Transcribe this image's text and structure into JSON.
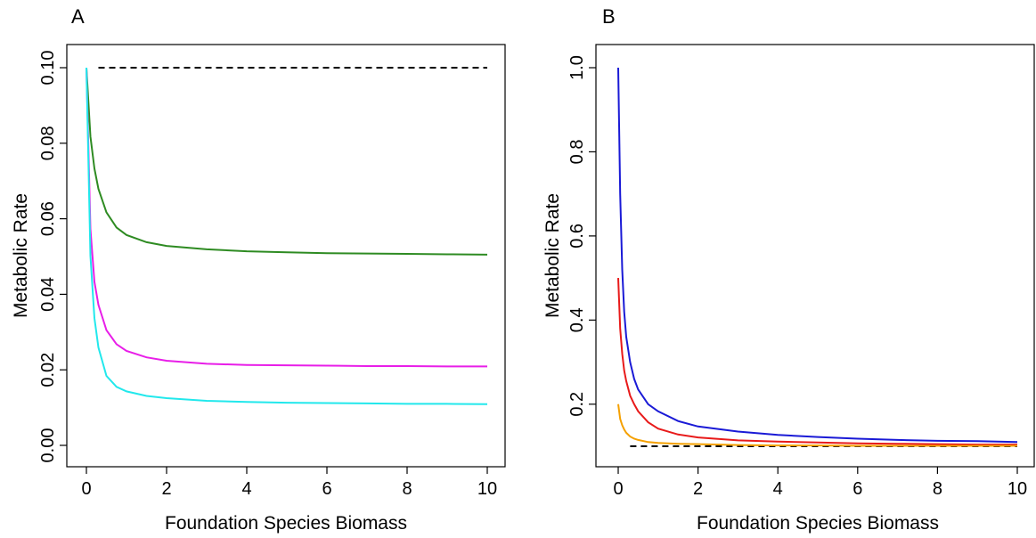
{
  "chart_data": [
    {
      "panel": "A",
      "type": "line",
      "xlabel": "Foundation Species Biomass",
      "ylabel": "Metabolic Rate",
      "xlim": [
        0,
        10
      ],
      "ylim": [
        0,
        0.1
      ],
      "xticks": [
        0,
        2,
        4,
        6,
        8,
        10
      ],
      "xtick_labels": [
        "0",
        "2",
        "4",
        "6",
        "8",
        "10"
      ],
      "yticks": [
        0,
        0.02,
        0.04,
        0.06,
        0.08,
        0.1
      ],
      "ytick_labels": [
        "0.00",
        "0.02",
        "0.04",
        "0.06",
        "0.08",
        "0.10"
      ],
      "grid": false,
      "legend": "none",
      "series": [
        {
          "color": "#000000",
          "dash": true,
          "x": [
            0.3,
            10
          ],
          "y": [
            0.1,
            0.1
          ]
        },
        {
          "color": "#2e8b22",
          "x": [
            0,
            0.1,
            0.2,
            0.3,
            0.5,
            0.75,
            1,
            1.5,
            2,
            3,
            4,
            5,
            6,
            7,
            8,
            9,
            10
          ],
          "y": [
            0.1,
            0.0818,
            0.0733,
            0.0679,
            0.0617,
            0.0577,
            0.0557,
            0.0538,
            0.0528,
            0.0519,
            0.0514,
            0.0511,
            0.0509,
            0.0508,
            0.0507,
            0.0506,
            0.0505
          ]
        },
        {
          "color": "#e81ee8",
          "x": [
            0,
            0.1,
            0.2,
            0.3,
            0.5,
            0.75,
            1,
            1.5,
            2,
            3,
            4,
            5,
            6,
            7,
            8,
            9,
            10
          ],
          "y": [
            0.1,
            0.0573,
            0.0433,
            0.0372,
            0.0305,
            0.0268,
            0.025,
            0.0233,
            0.0224,
            0.0216,
            0.0213,
            0.0212,
            0.0211,
            0.021,
            0.021,
            0.0209,
            0.0209
          ]
        },
        {
          "color": "#22e8ec",
          "x": [
            0,
            0.1,
            0.2,
            0.3,
            0.5,
            0.75,
            1,
            1.5,
            2,
            3,
            4,
            5,
            6,
            7,
            8,
            9,
            10
          ],
          "y": [
            0.1,
            0.0502,
            0.0337,
            0.0259,
            0.0184,
            0.0155,
            0.0143,
            0.0131,
            0.0125,
            0.0118,
            0.0115,
            0.0113,
            0.0112,
            0.0111,
            0.011,
            0.011,
            0.0109
          ]
        }
      ]
    },
    {
      "panel": "B",
      "type": "line",
      "xlabel": "Foundation Species Biomass",
      "ylabel": "Metabolic Rate",
      "xlim": [
        0,
        10
      ],
      "ylim": [
        0.1,
        1.0
      ],
      "xticks": [
        0,
        2,
        4,
        6,
        8,
        10
      ],
      "xtick_labels": [
        "0",
        "2",
        "4",
        "6",
        "8",
        "10"
      ],
      "yticks": [
        0.2,
        0.4,
        0.6,
        0.8,
        1.0
      ],
      "ytick_labels": [
        "0.2",
        "0.4",
        "0.6",
        "0.8",
        "1.0"
      ],
      "grid": false,
      "legend": "none",
      "series": [
        {
          "color": "#000000",
          "dash": true,
          "x": [
            0.3,
            10
          ],
          "y": [
            0.1,
            0.1
          ]
        },
        {
          "color": "#1a1ad6",
          "x": [
            0,
            0.05,
            0.1,
            0.15,
            0.2,
            0.3,
            0.4,
            0.5,
            0.75,
            1,
            1.5,
            2,
            3,
            4,
            5,
            6,
            7,
            8,
            9,
            10
          ],
          "y": [
            1.0,
            0.7,
            0.52,
            0.42,
            0.36,
            0.3,
            0.26,
            0.235,
            0.2,
            0.183,
            0.16,
            0.147,
            0.135,
            0.127,
            0.122,
            0.118,
            0.115,
            0.113,
            0.112,
            0.11
          ]
        },
        {
          "color": "#e81a1a",
          "x": [
            0,
            0.05,
            0.1,
            0.15,
            0.2,
            0.3,
            0.4,
            0.5,
            0.75,
            1,
            1.5,
            2,
            3,
            4,
            5,
            6,
            7,
            8,
            9,
            10
          ],
          "y": [
            0.5,
            0.38,
            0.32,
            0.28,
            0.255,
            0.22,
            0.2,
            0.183,
            0.157,
            0.142,
            0.128,
            0.121,
            0.114,
            0.111,
            0.109,
            0.107,
            0.106,
            0.105,
            0.104,
            0.104
          ]
        },
        {
          "color": "#f5a000",
          "x": [
            0,
            0.05,
            0.1,
            0.15,
            0.2,
            0.3,
            0.4,
            0.5,
            0.75,
            1,
            1.5,
            2,
            3,
            4,
            5,
            6,
            7,
            8,
            9,
            10
          ],
          "y": [
            0.2,
            0.165,
            0.15,
            0.14,
            0.132,
            0.123,
            0.118,
            0.115,
            0.11,
            0.108,
            0.106,
            0.105,
            0.103,
            0.102,
            0.102,
            0.101,
            0.101,
            0.101,
            0.101,
            0.101
          ]
        }
      ]
    }
  ]
}
